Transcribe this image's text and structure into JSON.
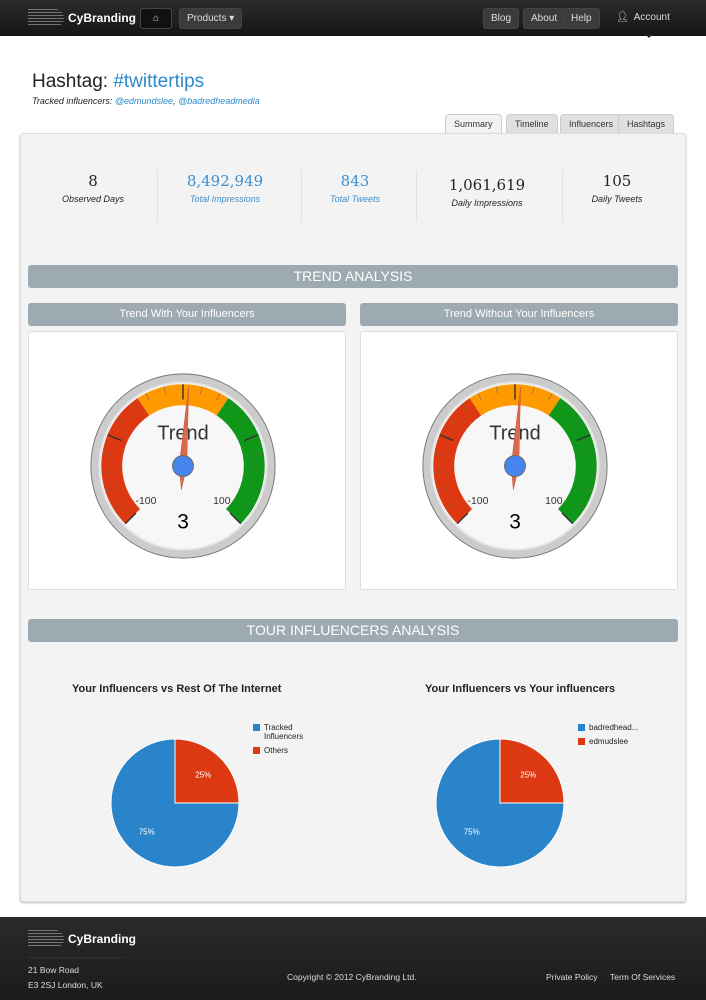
{
  "nav": {
    "brand": "CyBranding",
    "home_icon": "home-icon",
    "products": "Products ▾",
    "blog": "Blog",
    "about": "About",
    "help": "Help",
    "account": "Account"
  },
  "header": {
    "title_prefix": "Hashtag: ",
    "hashtag": "#twittertips",
    "tracked_label": "Tracked influencers: ",
    "influencers": [
      "@edmundslee",
      "@badredheadmedia"
    ]
  },
  "tabs": [
    "Summary",
    "Timeline",
    "Influencers",
    "Hashtags"
  ],
  "active_tab": "Summary",
  "stats": [
    {
      "value": "8",
      "label": "Observed Days"
    },
    {
      "value": "8,492,949",
      "label": "Total Impressions"
    },
    {
      "value": "843",
      "label": "Total Tweets"
    },
    {
      "value": "1,061,619",
      "label": "Daily Impressions"
    },
    {
      "value": "105",
      "label": "Daily Tweets"
    }
  ],
  "trend": {
    "heading": "TREND ANALYSIS",
    "gauges": [
      {
        "title": "Trend With Your Influencers",
        "label": "Trend",
        "value": 3,
        "min": -100,
        "max": 100,
        "min_label": "-100",
        "max_label": "100",
        "value_label": "3"
      },
      {
        "title": "Trend Without Your Influencers",
        "label": "Trend",
        "value": 3,
        "min": -100,
        "max": 100,
        "min_label": "-100",
        "max_label": "100",
        "value_label": "3"
      }
    ],
    "bands": [
      {
        "from": -100,
        "to": -25,
        "color": "#dc3912"
      },
      {
        "from": -25,
        "to": 25,
        "color": "#ff9900"
      },
      {
        "from": 25,
        "to": 100,
        "color": "#109618"
      }
    ]
  },
  "influencers": {
    "heading": "TOUR INFLUENCERS ANALYSIS"
  },
  "chart_data": [
    {
      "type": "pie",
      "title": "Your Influencers vs Rest Of The Internet",
      "categories": [
        "Tracked Influencers",
        "Others"
      ],
      "values": [
        75,
        25
      ],
      "labels": [
        "75%",
        "25%"
      ],
      "colors": [
        "#2a84c9",
        "#dc3912"
      ],
      "legend": "right"
    },
    {
      "type": "pie",
      "title": "Your Influencers vs Your influencers",
      "categories": [
        "badredhead...",
        "edmudslee"
      ],
      "values": [
        75,
        25
      ],
      "labels": [
        "75%",
        "25%"
      ],
      "colors": [
        "#2a84c9",
        "#dc3912"
      ],
      "legend": "right"
    }
  ],
  "footer": {
    "brand": "CyBranding",
    "address1": "21 Bow Road",
    "address2": "E3 2SJ London, UK",
    "copyright": "Copyright © 2012 CyBranding Ltd.",
    "privacy": "Private Policy",
    "terms": "Term Of Services"
  }
}
